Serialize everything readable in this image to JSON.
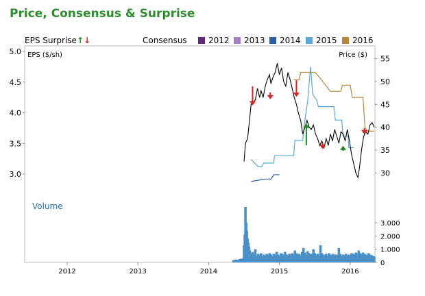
{
  "title": "Price, Consensus & Surprise",
  "legend": {
    "surprise_label": "EPS Surprise",
    "consensus_label": "Consensus",
    "years": [
      {
        "label": "2012",
        "color": "#5b2a7a"
      },
      {
        "label": "2013",
        "color": "#a57fc2"
      },
      {
        "label": "2014",
        "color": "#2a5fa8"
      },
      {
        "label": "2015",
        "color": "#5aa9d6"
      },
      {
        "label": "2016",
        "color": "#b8863b"
      }
    ]
  },
  "colors": {
    "up_arrow": "#1a8a1a",
    "down_arrow": "#e02020",
    "volume": "#4a90c8",
    "price": "#000000"
  },
  "chart_data": {
    "type": "line",
    "left_axis": {
      "label": "EPS ($/sh)",
      "ticks": [
        "5.0",
        "4.5",
        "4.0",
        "3.5",
        "3.0"
      ],
      "range": [
        2.7,
        5.0
      ]
    },
    "right_axis": {
      "label": "Price ($)",
      "ticks": [
        "55",
        "50",
        "45",
        "40",
        "35",
        "30"
      ],
      "range": [
        25.7,
        57.5
      ]
    },
    "volume_axis": {
      "label": "Volume",
      "ticks": [
        "3.000",
        "2.000",
        "1.000",
        "0"
      ],
      "range": [
        0,
        4300
      ]
    },
    "x_axis": {
      "ticks": [
        "2012",
        "2013",
        "2014",
        "2015",
        "2016"
      ],
      "range": [
        2011.4,
        2016.35
      ]
    },
    "price": [
      [
        2014.5,
        32.5
      ],
      [
        2014.52,
        36.5
      ],
      [
        2014.55,
        37.5
      ],
      [
        2014.58,
        42.0
      ],
      [
        2014.6,
        45.0
      ],
      [
        2014.63,
        45.5
      ],
      [
        2014.66,
        46.0
      ],
      [
        2014.69,
        48.5
      ],
      [
        2014.72,
        46.5
      ],
      [
        2014.74,
        48.0
      ],
      [
        2014.77,
        46.5
      ],
      [
        2014.8,
        49.0
      ],
      [
        2014.83,
        50.5
      ],
      [
        2014.86,
        51.5
      ],
      [
        2014.88,
        49.5
      ],
      [
        2014.91,
        51.0
      ],
      [
        2014.94,
        52.0
      ],
      [
        2014.97,
        54.0
      ],
      [
        2015.0,
        51.5
      ],
      [
        2015.03,
        53.0
      ],
      [
        2015.06,
        50.0
      ],
      [
        2015.09,
        49.0
      ],
      [
        2015.12,
        52.0
      ],
      [
        2015.15,
        50.5
      ],
      [
        2015.18,
        48.5
      ],
      [
        2015.21,
        46.5
      ],
      [
        2015.24,
        45.0
      ],
      [
        2015.27,
        43.0
      ],
      [
        2015.3,
        41.5
      ],
      [
        2015.33,
        38.5
      ],
      [
        2015.36,
        40.0
      ],
      [
        2015.39,
        41.5
      ],
      [
        2015.42,
        40.0
      ],
      [
        2015.45,
        39.5
      ],
      [
        2015.48,
        40.5
      ],
      [
        2015.51,
        38.5
      ],
      [
        2015.54,
        37.5
      ],
      [
        2015.57,
        36.0
      ],
      [
        2015.6,
        37.0
      ],
      [
        2015.63,
        35.5
      ],
      [
        2015.66,
        37.5
      ],
      [
        2015.69,
        36.0
      ],
      [
        2015.72,
        38.5
      ],
      [
        2015.75,
        37.0
      ],
      [
        2015.78,
        39.5
      ],
      [
        2015.81,
        38.0
      ],
      [
        2015.84,
        36.5
      ],
      [
        2015.87,
        39.0
      ],
      [
        2015.9,
        38.5
      ],
      [
        2015.93,
        37.0
      ],
      [
        2015.96,
        39.5
      ],
      [
        2015.99,
        37.0
      ],
      [
        2016.02,
        34.0
      ],
      [
        2016.05,
        32.0
      ],
      [
        2016.08,
        30.0
      ],
      [
        2016.11,
        29.0
      ],
      [
        2016.13,
        31.0
      ],
      [
        2016.16,
        35.0
      ],
      [
        2016.19,
        38.0
      ],
      [
        2016.22,
        39.0
      ],
      [
        2016.25,
        38.5
      ],
      [
        2016.28,
        40.5
      ],
      [
        2016.31,
        41.0
      ],
      [
        2016.34,
        40.0
      ]
    ],
    "series": [
      {
        "name": "2014",
        "points": [
          [
            2014.6,
            2.88
          ],
          [
            2014.8,
            2.92
          ],
          [
            2014.88,
            2.92
          ],
          [
            2014.92,
            2.99
          ],
          [
            2015.0,
            2.99
          ]
        ]
      },
      {
        "name": "2015",
        "points": [
          [
            2014.6,
            3.24
          ],
          [
            2014.7,
            3.12
          ],
          [
            2014.75,
            3.12
          ],
          [
            2014.78,
            3.18
          ],
          [
            2014.92,
            3.18
          ],
          [
            2014.93,
            3.3
          ],
          [
            2015.2,
            3.3
          ],
          [
            2015.22,
            3.55
          ],
          [
            2015.33,
            3.55
          ],
          [
            2015.35,
            3.8
          ],
          [
            2015.4,
            4.2
          ],
          [
            2015.44,
            4.75
          ],
          [
            2015.47,
            4.3
          ],
          [
            2015.53,
            4.2
          ],
          [
            2015.55,
            4.1
          ],
          [
            2015.77,
            4.1
          ],
          [
            2015.79,
            3.88
          ],
          [
            2015.88,
            3.88
          ],
          [
            2015.9,
            3.62
          ],
          [
            2015.97,
            3.62
          ],
          [
            2015.98,
            3.43
          ],
          [
            2016.05,
            3.43
          ]
        ]
      },
      {
        "name": "2016",
        "points": [
          [
            2015.2,
            4.54
          ],
          [
            2015.28,
            4.54
          ],
          [
            2015.3,
            4.66
          ],
          [
            2015.5,
            4.66
          ],
          [
            2015.55,
            4.6
          ],
          [
            2015.72,
            4.35
          ],
          [
            2015.87,
            4.35
          ],
          [
            2015.89,
            4.45
          ],
          [
            2016.0,
            4.45
          ],
          [
            2016.03,
            4.25
          ],
          [
            2016.18,
            4.25
          ],
          [
            2016.21,
            3.75
          ],
          [
            2016.25,
            3.7
          ],
          [
            2016.34,
            3.7
          ]
        ]
      }
    ],
    "surprises": [
      {
        "x": 2014.62,
        "dir": "down",
        "y_top": 4.43,
        "y_tip": 4.12
      },
      {
        "x": 2014.87,
        "dir": "down",
        "y_top": 4.33,
        "y_tip": 4.22
      },
      {
        "x": 2015.24,
        "dir": "down",
        "y_top": 4.53,
        "y_tip": 4.26
      },
      {
        "x": 2015.38,
        "dir": "up",
        "y_top": 3.82,
        "y_tip": 3.47
      },
      {
        "x": 2015.61,
        "dir": "down",
        "y_top": 3.51,
        "y_tip": 3.41
      },
      {
        "x": 2015.9,
        "dir": "up",
        "y_top": 3.46,
        "y_tip": 3.38
      },
      {
        "x": 2016.2,
        "dir": "down",
        "y_top": 3.75,
        "y_tip": 3.65
      }
    ],
    "volume": [
      [
        2014.35,
        180
      ],
      [
        2014.38,
        220
      ],
      [
        2014.41,
        200
      ],
      [
        2014.44,
        260
      ],
      [
        2014.47,
        300
      ],
      [
        2014.5,
        1300
      ],
      [
        2014.51,
        2100
      ],
      [
        2014.52,
        4200
      ],
      [
        2014.53,
        3000
      ],
      [
        2014.54,
        2400
      ],
      [
        2014.55,
        1800
      ],
      [
        2014.56,
        1500
      ],
      [
        2014.57,
        1200
      ],
      [
        2014.58,
        900
      ],
      [
        2014.6,
        700
      ],
      [
        2014.62,
        800
      ],
      [
        2014.64,
        600
      ],
      [
        2014.66,
        1000
      ],
      [
        2014.68,
        500
      ],
      [
        2014.7,
        650
      ],
      [
        2014.72,
        550
      ],
      [
        2014.74,
        700
      ],
      [
        2014.76,
        450
      ],
      [
        2014.78,
        600
      ],
      [
        2014.8,
        500
      ],
      [
        2014.82,
        650
      ],
      [
        2014.84,
        550
      ],
      [
        2014.86,
        700
      ],
      [
        2014.88,
        600
      ],
      [
        2014.9,
        500
      ],
      [
        2014.92,
        650
      ],
      [
        2014.94,
        550
      ],
      [
        2014.96,
        800
      ],
      [
        2014.98,
        600
      ],
      [
        2015.0,
        500
      ],
      [
        2015.02,
        700
      ],
      [
        2015.04,
        650
      ],
      [
        2015.06,
        550
      ],
      [
        2015.08,
        800
      ],
      [
        2015.1,
        600
      ],
      [
        2015.12,
        500
      ],
      [
        2015.14,
        650
      ],
      [
        2015.16,
        550
      ],
      [
        2015.18,
        700
      ],
      [
        2015.2,
        600
      ],
      [
        2015.22,
        900
      ],
      [
        2015.24,
        700
      ],
      [
        2015.26,
        600
      ],
      [
        2015.28,
        650
      ],
      [
        2015.3,
        550
      ],
      [
        2015.32,
        800
      ],
      [
        2015.34,
        1100
      ],
      [
        2015.36,
        750
      ],
      [
        2015.38,
        600
      ],
      [
        2015.4,
        850
      ],
      [
        2015.42,
        700
      ],
      [
        2015.44,
        600
      ],
      [
        2015.46,
        650
      ],
      [
        2015.48,
        1000
      ],
      [
        2015.5,
        700
      ],
      [
        2015.52,
        550
      ],
      [
        2015.54,
        650
      ],
      [
        2015.56,
        500
      ],
      [
        2015.58,
        1300
      ],
      [
        2015.6,
        700
      ],
      [
        2015.62,
        600
      ],
      [
        2015.64,
        550
      ],
      [
        2015.66,
        650
      ],
      [
        2015.68,
        500
      ],
      [
        2015.7,
        700
      ],
      [
        2015.72,
        600
      ],
      [
        2015.74,
        550
      ],
      [
        2015.76,
        650
      ],
      [
        2015.78,
        500
      ],
      [
        2015.8,
        600
      ],
      [
        2015.82,
        550
      ],
      [
        2015.84,
        1100
      ],
      [
        2015.86,
        650
      ],
      [
        2015.88,
        500
      ],
      [
        2015.9,
        600
      ],
      [
        2015.92,
        550
      ],
      [
        2015.94,
        650
      ],
      [
        2015.96,
        500
      ],
      [
        2015.98,
        600
      ],
      [
        2016.0,
        550
      ],
      [
        2016.02,
        700
      ],
      [
        2016.04,
        650
      ],
      [
        2016.06,
        600
      ],
      [
        2016.08,
        750
      ],
      [
        2016.1,
        650
      ],
      [
        2016.12,
        900
      ],
      [
        2016.14,
        700
      ],
      [
        2016.16,
        600
      ],
      [
        2016.18,
        750
      ],
      [
        2016.2,
        650
      ],
      [
        2016.22,
        600
      ],
      [
        2016.24,
        550
      ],
      [
        2016.26,
        700
      ],
      [
        2016.28,
        600
      ],
      [
        2016.3,
        550
      ],
      [
        2016.32,
        500
      ],
      [
        2016.34,
        450
      ]
    ]
  }
}
